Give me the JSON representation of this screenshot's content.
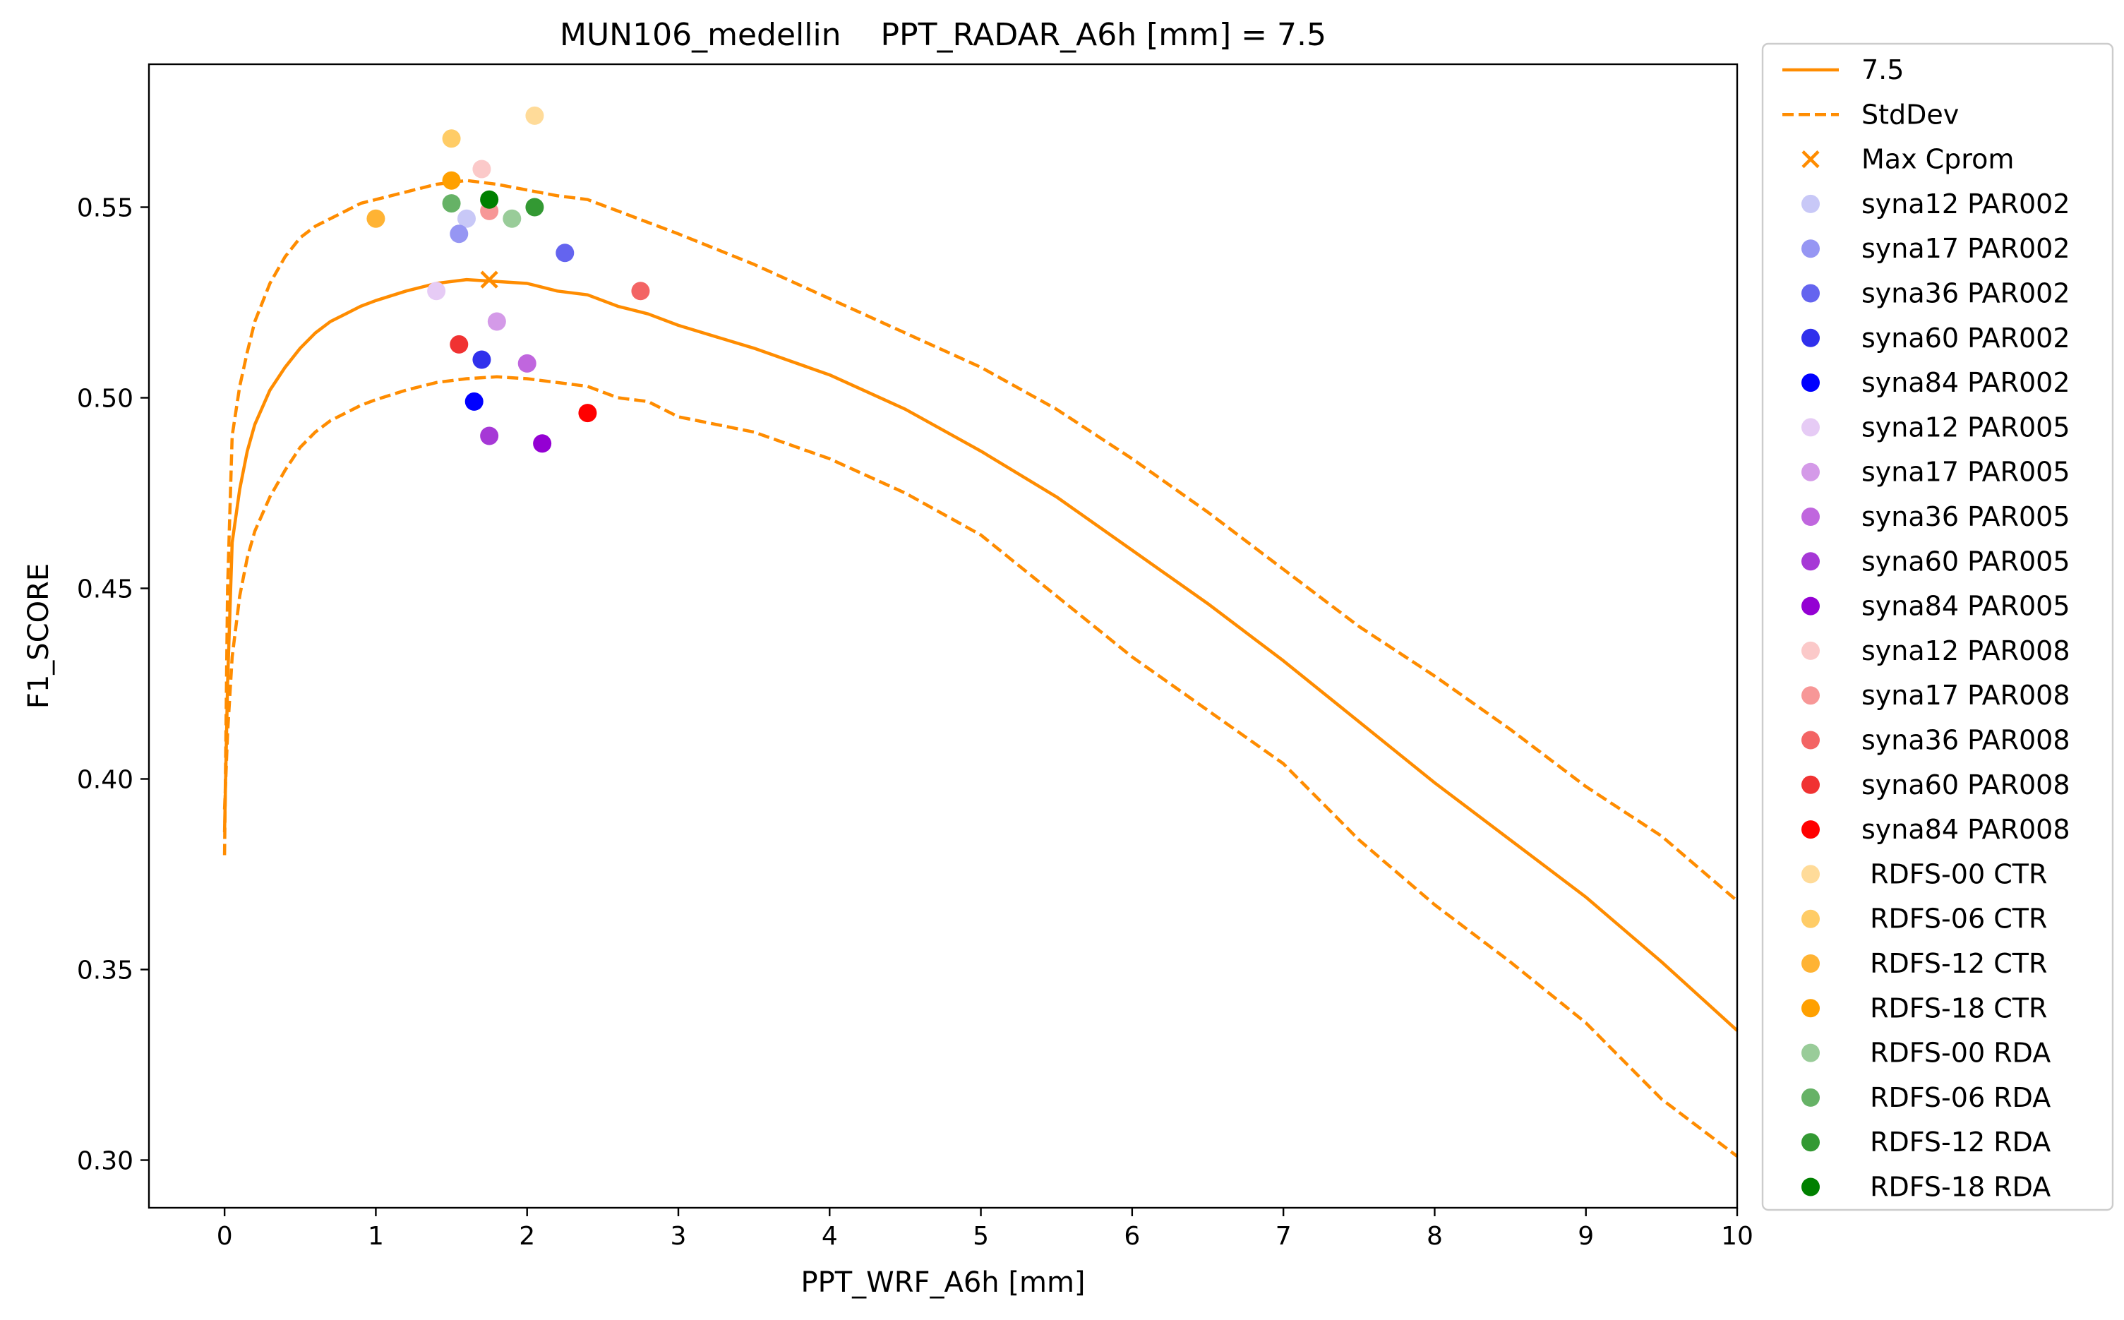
{
  "chart_data": {
    "type": "line",
    "title": "MUN106_medellin    PPT_RADAR_A6h [mm] = 7.5",
    "xlabel": "PPT_WRF_A6h [mm]",
    "ylabel": "F1_SCORE",
    "xlim": [
      -0.5,
      10
    ],
    "ylim": [
      0.2875,
      0.5875
    ],
    "xticks": [
      0,
      1,
      2,
      3,
      4,
      5,
      6,
      7,
      8,
      9,
      10
    ],
    "xtick_labels": [
      "0",
      "1",
      "2",
      "3",
      "4",
      "5",
      "6",
      "7",
      "8",
      "9",
      "10"
    ],
    "yticks": [
      0.3,
      0.35,
      0.4,
      0.45,
      0.5,
      0.55
    ],
    "ytick_labels": [
      "0.30",
      "0.35",
      "0.40",
      "0.45",
      "0.50",
      "0.55"
    ],
    "grid": false,
    "legend_position": "outside-right",
    "lines": [
      {
        "name": "7.5",
        "color": "#ff8c00",
        "dash": "solid",
        "x": [
          0,
          0.02,
          0.05,
          0.1,
          0.15,
          0.2,
          0.3,
          0.4,
          0.5,
          0.6,
          0.7,
          0.8,
          0.9,
          1.0,
          1.2,
          1.4,
          1.6,
          1.8,
          2.0,
          2.2,
          2.4,
          2.6,
          2.8,
          3.0,
          3.5,
          4.0,
          4.5,
          5.0,
          5.5,
          6.0,
          6.5,
          7.0,
          7.5,
          8.0,
          8.5,
          9.0,
          9.5,
          10.0
        ],
        "y": [
          0.386,
          0.425,
          0.462,
          0.476,
          0.486,
          0.493,
          0.502,
          0.508,
          0.513,
          0.517,
          0.52,
          0.522,
          0.524,
          0.5255,
          0.528,
          0.53,
          0.531,
          0.5305,
          0.53,
          0.528,
          0.527,
          0.524,
          0.522,
          0.519,
          0.513,
          0.506,
          0.497,
          0.486,
          0.474,
          0.46,
          0.446,
          0.431,
          0.415,
          0.399,
          0.384,
          0.369,
          0.352,
          0.334
        ]
      },
      {
        "name": "StdDev",
        "color": "#ff8c00",
        "dash": "dashed",
        "x": [
          0,
          0.02,
          0.05,
          0.1,
          0.15,
          0.2,
          0.3,
          0.4,
          0.5,
          0.6,
          0.7,
          0.8,
          0.9,
          1.0,
          1.2,
          1.4,
          1.6,
          1.8,
          2.0,
          2.2,
          2.4,
          2.6,
          2.8,
          3.0,
          3.5,
          4.0,
          4.5,
          5.0,
          5.5,
          6.0,
          6.5,
          7.0,
          7.5,
          8.0,
          8.5,
          9.0,
          9.5,
          10.0
        ],
        "y": [
          0.38,
          0.45,
          0.49,
          0.503,
          0.512,
          0.52,
          0.53,
          0.537,
          0.542,
          0.545,
          0.547,
          0.549,
          0.551,
          0.552,
          0.554,
          0.556,
          0.557,
          0.556,
          0.5545,
          0.553,
          0.552,
          0.549,
          0.546,
          0.543,
          0.535,
          0.526,
          0.517,
          0.508,
          0.497,
          0.484,
          0.47,
          0.455,
          0.44,
          0.427,
          0.413,
          0.398,
          0.385,
          0.368
        ]
      },
      {
        "name": "",
        "color": "#ff8c00",
        "dash": "dashed",
        "x": [
          0,
          0.02,
          0.05,
          0.1,
          0.15,
          0.2,
          0.3,
          0.4,
          0.5,
          0.6,
          0.7,
          0.8,
          0.9,
          1.0,
          1.2,
          1.4,
          1.6,
          1.8,
          2.0,
          2.2,
          2.4,
          2.6,
          2.8,
          3.0,
          3.5,
          4.0,
          4.5,
          5.0,
          5.5,
          6.0,
          6.5,
          7.0,
          7.5,
          8.0,
          8.5,
          9.0,
          9.5,
          10.0
        ],
        "y": [
          0.392,
          0.412,
          0.432,
          0.448,
          0.458,
          0.465,
          0.474,
          0.481,
          0.487,
          0.491,
          0.494,
          0.496,
          0.498,
          0.4995,
          0.502,
          0.504,
          0.505,
          0.5055,
          0.505,
          0.504,
          0.503,
          0.5,
          0.499,
          0.495,
          0.491,
          0.484,
          0.475,
          0.464,
          0.448,
          0.432,
          0.418,
          0.404,
          0.384,
          0.367,
          0.352,
          0.336,
          0.316,
          0.301
        ]
      }
    ],
    "max_marker": {
      "name": "Max Cprom",
      "x": 1.75,
      "y": 0.531,
      "color": "#ff8c00"
    },
    "scatter": [
      {
        "name": "syna12 PAR002",
        "color": "#c8c8f7",
        "x": 1.6,
        "y": 0.547
      },
      {
        "name": "syna17 PAR002",
        "color": "#9696f3",
        "x": 1.55,
        "y": 0.543
      },
      {
        "name": "syna36 PAR002",
        "color": "#6464ef",
        "x": 2.25,
        "y": 0.538
      },
      {
        "name": "syna60 PAR002",
        "color": "#3030ec",
        "x": 1.7,
        "y": 0.51
      },
      {
        "name": "syna84 PAR002",
        "color": "#0000ff",
        "x": 1.65,
        "y": 0.499
      },
      {
        "name": "syna12 PAR005",
        "color": "#e6cbf5",
        "x": 1.4,
        "y": 0.528
      },
      {
        "name": "syna17 PAR005",
        "color": "#d49ae8",
        "x": 1.8,
        "y": 0.52
      },
      {
        "name": "syna36 PAR005",
        "color": "#c066de",
        "x": 2.0,
        "y": 0.509
      },
      {
        "name": "syna60 PAR005",
        "color": "#a638d6",
        "x": 1.75,
        "y": 0.49
      },
      {
        "name": "syna84 PAR005",
        "color": "#9400d3",
        "x": 2.1,
        "y": 0.488
      },
      {
        "name": "syna12 PAR008",
        "color": "#fbc9c9",
        "x": 1.7,
        "y": 0.56
      },
      {
        "name": "syna17 PAR008",
        "color": "#f79797",
        "x": 1.75,
        "y": 0.549
      },
      {
        "name": "syna36 PAR008",
        "color": "#f36464",
        "x": 2.75,
        "y": 0.528
      },
      {
        "name": "syna60 PAR008",
        "color": "#f03232",
        "x": 1.55,
        "y": 0.514
      },
      {
        "name": "syna84 PAR008",
        "color": "#ff0000",
        "x": 2.4,
        "y": 0.496
      },
      {
        "name": " RDFS-00 CTR",
        "color": "#ffdb99",
        "x": 2.05,
        "y": 0.574
      },
      {
        "name": " RDFS-06 CTR",
        "color": "#ffcc66",
        "x": 1.5,
        "y": 0.568
      },
      {
        "name": " RDFS-12 CTR",
        "color": "#ffb333",
        "x": 1.0,
        "y": 0.547
      },
      {
        "name": " RDFS-18 CTR",
        "color": "#ffa000",
        "x": 1.5,
        "y": 0.557
      },
      {
        "name": " RDFS-00 RDA",
        "color": "#99cc99",
        "x": 1.9,
        "y": 0.547
      },
      {
        "name": " RDFS-06 RDA",
        "color": "#66b266",
        "x": 1.5,
        "y": 0.551
      },
      {
        "name": " RDFS-12 RDA",
        "color": "#339933",
        "x": 2.05,
        "y": 0.55
      },
      {
        "name": " RDFS-18 RDA",
        "color": "#008000",
        "x": 1.75,
        "y": 0.552
      }
    ],
    "legend_entries": [
      {
        "label": "7.5",
        "kind": "line-solid",
        "color": "#ff8c00"
      },
      {
        "label": "StdDev",
        "kind": "line-dashed",
        "color": "#ff8c00"
      },
      {
        "label": "Max Cprom",
        "kind": "x-marker",
        "color": "#ff8c00"
      },
      {
        "label": "syna12 PAR002",
        "kind": "dot",
        "color": "#c8c8f7"
      },
      {
        "label": "syna17 PAR002",
        "kind": "dot",
        "color": "#9696f3"
      },
      {
        "label": "syna36 PAR002",
        "kind": "dot",
        "color": "#6464ef"
      },
      {
        "label": "syna60 PAR002",
        "kind": "dot",
        "color": "#3030ec"
      },
      {
        "label": "syna84 PAR002",
        "kind": "dot",
        "color": "#0000ff"
      },
      {
        "label": "syna12 PAR005",
        "kind": "dot",
        "color": "#e6cbf5"
      },
      {
        "label": "syna17 PAR005",
        "kind": "dot",
        "color": "#d49ae8"
      },
      {
        "label": "syna36 PAR005",
        "kind": "dot",
        "color": "#c066de"
      },
      {
        "label": "syna60 PAR005",
        "kind": "dot",
        "color": "#a638d6"
      },
      {
        "label": "syna84 PAR005",
        "kind": "dot",
        "color": "#9400d3"
      },
      {
        "label": "syna12 PAR008",
        "kind": "dot",
        "color": "#fbc9c9"
      },
      {
        "label": "syna17 PAR008",
        "kind": "dot",
        "color": "#f79797"
      },
      {
        "label": "syna36 PAR008",
        "kind": "dot",
        "color": "#f36464"
      },
      {
        "label": "syna60 PAR008",
        "kind": "dot",
        "color": "#f03232"
      },
      {
        "label": "syna84 PAR008",
        "kind": "dot",
        "color": "#ff0000"
      },
      {
        "label": " RDFS-00 CTR",
        "kind": "dot",
        "color": "#ffdb99"
      },
      {
        "label": " RDFS-06 CTR",
        "kind": "dot",
        "color": "#ffcc66"
      },
      {
        "label": " RDFS-12 CTR",
        "kind": "dot",
        "color": "#ffb333"
      },
      {
        "label": " RDFS-18 CTR",
        "kind": "dot",
        "color": "#ffa000"
      },
      {
        "label": " RDFS-00 RDA",
        "kind": "dot",
        "color": "#99cc99"
      },
      {
        "label": " RDFS-06 RDA",
        "kind": "dot",
        "color": "#66b266"
      },
      {
        "label": " RDFS-12 RDA",
        "kind": "dot",
        "color": "#339933"
      },
      {
        "label": " RDFS-18 RDA",
        "kind": "dot",
        "color": "#008000"
      }
    ]
  }
}
